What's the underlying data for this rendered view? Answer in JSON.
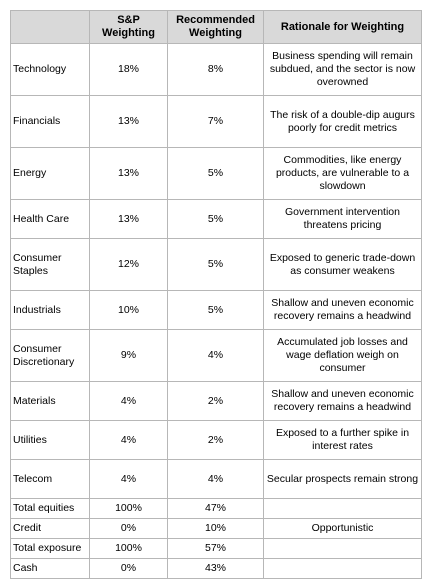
{
  "table": {
    "headers": {
      "sector": "",
      "sp": "S&P Weighting",
      "rec": "Recommended Weighting",
      "why": "Rationale for Weighting"
    },
    "rows": [
      {
        "sector": "Technology",
        "sp": "18%",
        "rec": "8%",
        "why": "Business spending will remain subdued, and the sector is now overowned"
      },
      {
        "sector": "Financials",
        "sp": "13%",
        "rec": "7%",
        "why": "The risk of a double-dip augurs poorly for credit metrics"
      },
      {
        "sector": "Energy",
        "sp": "13%",
        "rec": "5%",
        "why": "Commodities, like energy products, are vulnerable to a slowdown"
      },
      {
        "sector": "Health Care",
        "sp": "13%",
        "rec": "5%",
        "why": "Government intervention threatens pricing"
      },
      {
        "sector": "Consumer Staples",
        "sp": "12%",
        "rec": "5%",
        "why": "Exposed to generic trade-down as consumer weakens"
      },
      {
        "sector": "Industrials",
        "sp": "10%",
        "rec": "5%",
        "why": "Shallow and uneven economic recovery remains a headwind"
      },
      {
        "sector": "Consumer Discretionary",
        "sp": "9%",
        "rec": "4%",
        "why": "Accumulated job losses and wage deflation weigh on consumer"
      },
      {
        "sector": "Materials",
        "sp": "4%",
        "rec": "2%",
        "why": "Shallow and uneven economic recovery remains a headwind"
      },
      {
        "sector": "Utilities",
        "sp": "4%",
        "rec": "2%",
        "why": "Exposed to a further spike in interest rates"
      },
      {
        "sector": "Telecom",
        "sp": "4%",
        "rec": "4%",
        "why": "Secular prospects remain strong"
      },
      {
        "sector": "Total equities",
        "sp": "100%",
        "rec": "47%",
        "why": ""
      },
      {
        "sector": "Credit",
        "sp": "0%",
        "rec": "10%",
        "why": "Opportunistic"
      },
      {
        "sector": "Total exposure",
        "sp": "100%",
        "rec": "57%",
        "why": ""
      },
      {
        "sector": "Cash",
        "sp": "0%",
        "rec": "43%",
        "why": ""
      }
    ]
  }
}
